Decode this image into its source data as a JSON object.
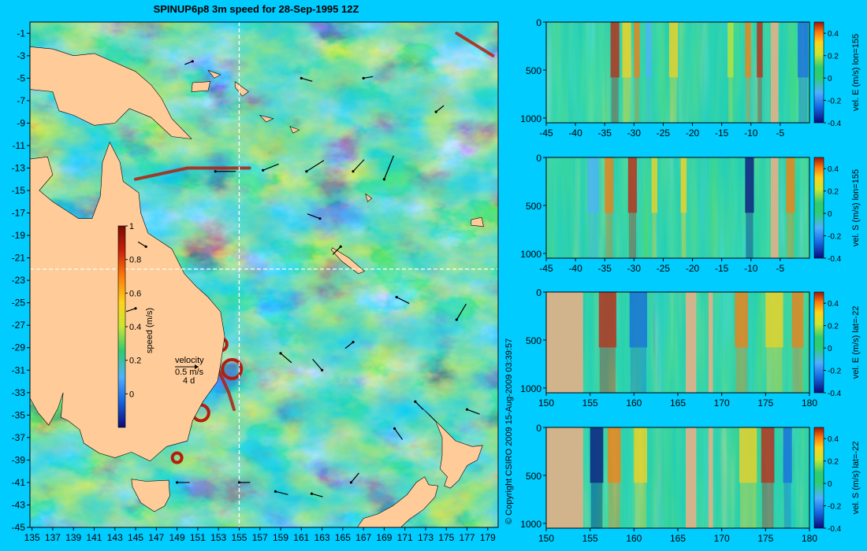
{
  "title": "SPINUP6p8 3m speed for 28-Sep-1995 12Z",
  "copyright": "© Copyright CSIRO 2009 15-Aug-2009 03:39:57",
  "colors": {
    "background": "#00ccff",
    "land": "#ffcc99",
    "bathy_land": "#d2b48c",
    "colormap": [
      "#0a0a7a",
      "#1565e0",
      "#4fb0ff",
      "#2ecc71",
      "#c8e632",
      "#ffd21a",
      "#ff7a0a",
      "#c81e0a",
      "#7a0a00"
    ]
  },
  "chart_data": [
    {
      "id": "map",
      "type": "heatmap",
      "title": "SPINUP6p8 3m speed for 28-Sep-1995 12Z",
      "x_ticks": [
        "135",
        "137",
        "139",
        "141",
        "143",
        "145",
        "147",
        "149",
        "151",
        "153",
        "155",
        "157",
        "159",
        "161",
        "163",
        "165",
        "167",
        "169",
        "171",
        "173",
        "175",
        "177",
        "179"
      ],
      "y_ticks": [
        "-1",
        "-3",
        "-5",
        "-7",
        "-9",
        "-11",
        "-13",
        "-15",
        "-17",
        "-19",
        "-21",
        "-23",
        "-25",
        "-27",
        "-29",
        "-31",
        "-33",
        "-35",
        "-37",
        "-39",
        "-41",
        "-43",
        "-45"
      ],
      "xlim": [
        134.8,
        180
      ],
      "ylim": [
        -45,
        0
      ],
      "section_lines": {
        "lon": 155,
        "lat": -22
      },
      "colorbar": {
        "label": "speed (m/s)",
        "ticks": [
          "0",
          "0.2",
          "0.4",
          "0.6",
          "0.8",
          "1"
        ],
        "range": [
          -0.2,
          1
        ]
      },
      "velocity_legend": {
        "title": "velocity",
        "speed": "0.5 m/s",
        "duration": "4 d"
      }
    },
    {
      "id": "section-u-lon155",
      "type": "heatmap",
      "x_ticks": [
        "-45",
        "-40",
        "-35",
        "-30",
        "-25",
        "-20",
        "-15",
        "-10",
        "-5"
      ],
      "y_ticks": [
        "0",
        "500",
        "1000"
      ],
      "xlim": [
        -45,
        0
      ],
      "ylim": [
        1050,
        0
      ],
      "colorbar": {
        "label": "vel. E (m/s) lon=155",
        "ticks": [
          "-0.4",
          "-0.2",
          "0",
          "0.2",
          "0.4"
        ],
        "range": [
          -0.4,
          0.5
        ]
      }
    },
    {
      "id": "section-v-lon155",
      "type": "heatmap",
      "x_ticks": [
        "-45",
        "-40",
        "-35",
        "-30",
        "-25",
        "-20",
        "-15",
        "-10",
        "-5"
      ],
      "y_ticks": [
        "0",
        "500",
        "1000"
      ],
      "xlim": [
        -45,
        0
      ],
      "ylim": [
        1050,
        0
      ],
      "colorbar": {
        "label": "vel. S (m/s) lon=155",
        "ticks": [
          "-0.4",
          "-0.2",
          "0",
          "0.2",
          "0.4"
        ],
        "range": [
          -0.4,
          0.5
        ]
      }
    },
    {
      "id": "section-u-lat22",
      "type": "heatmap",
      "x_ticks": [
        "150",
        "155",
        "160",
        "165",
        "170",
        "175",
        "180"
      ],
      "y_ticks": [
        "0",
        "500",
        "1000"
      ],
      "xlim": [
        150,
        180
      ],
      "ylim": [
        1050,
        0
      ],
      "colorbar": {
        "label": "vel. E (m/s) lat=-22",
        "ticks": [
          "-0.4",
          "-0.2",
          "0",
          "0.2",
          "0.4"
        ],
        "range": [
          -0.4,
          0.5
        ]
      }
    },
    {
      "id": "section-v-lat22",
      "type": "heatmap",
      "x_ticks": [
        "150",
        "155",
        "160",
        "165",
        "170",
        "175",
        "180"
      ],
      "y_ticks": [
        "0",
        "500",
        "1000"
      ],
      "xlim": [
        150,
        180
      ],
      "ylim": [
        1050,
        0
      ],
      "colorbar": {
        "label": "vel. S (m/s) lat=-22",
        "ticks": [
          "-0.4",
          "-0.2",
          "0",
          "0.2",
          "0.4"
        ],
        "range": [
          -0.4,
          0.5
        ]
      }
    }
  ]
}
